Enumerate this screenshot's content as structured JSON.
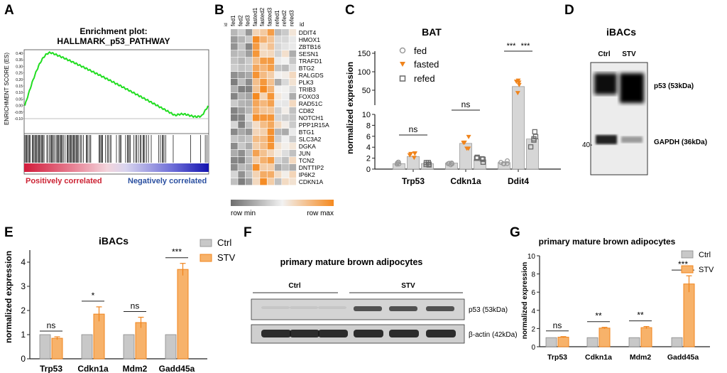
{
  "panels": {
    "A": {
      "letter": "A",
      "title_line1": "Enrichment plot:",
      "title_line2": "HALLMARK_p53_PATHWAY",
      "ylabel": "ENRICHMENT SCORE (ES)",
      "yticks": [
        "0.40",
        "0.35",
        "0.30",
        "0.25",
        "0.20",
        "0.15",
        "0.10",
        "0.05",
        "0.00",
        "-0.05",
        "-0.10"
      ],
      "pos_label": "Positively correlated",
      "neg_label": "Negatively correlated",
      "colors": {
        "curve": "#22dd22",
        "pos": "#cc2233",
        "neg": "#2a4fa0"
      }
    },
    "B": {
      "letter": "B",
      "id_label": "id",
      "columns": [
        "fed1",
        "fed2",
        "fed3",
        "fasted1",
        "fasted2",
        "fasted3",
        "refed1",
        "refed2",
        "refed3"
      ],
      "genes": [
        "DDIT4",
        "HMOX1",
        "ZBTB16",
        "SESN1",
        "TRAFD1",
        "BTG2",
        "RALGDS",
        "PLK3",
        "TRIB3",
        "FOXO3",
        "RAD51C",
        "CD82",
        "NOTCH1",
        "PPP1R15A",
        "BTG1",
        "SLC3A2",
        "DGKA",
        "JUN",
        "TCN2",
        "DNTTIP2",
        "IP6K2",
        "CDKN1A"
      ],
      "legend_min": "row min",
      "legend_max": "row max",
      "colors": {
        "min": "#6e6e6e",
        "mid": "#f2f2f2",
        "max": "#f5891f"
      }
    },
    "C": {
      "letter": "C",
      "chart_data": {
        "type": "bar",
        "title": "BAT",
        "ylabel": "normalized expression",
        "categories": [
          "Trp53",
          "Cdkn1a",
          "Ddit4"
        ],
        "series": [
          {
            "name": "fed",
            "values": [
              1.0,
              1.1,
              1.2
            ]
          },
          {
            "name": "fasted",
            "values": [
              2.3,
              4.7,
              60
            ]
          },
          {
            "name": "refed",
            "values": [
              1.0,
              1.7,
              5.5
            ]
          }
        ],
        "yticks_low": [
          "0",
          "2",
          "4",
          "6",
          "8",
          "10"
        ],
        "yticks_high": [
          "50",
          "100",
          "150"
        ],
        "significance": [
          "ns",
          "ns",
          "***",
          "***"
        ]
      }
    },
    "D": {
      "letter": "D",
      "title": "iBACs",
      "lanes": [
        "Ctrl",
        "STV"
      ],
      "label_p53": "p53 (53kDa)",
      "label_gapdh": "GAPDH (36kDa)",
      "marker": "40-"
    },
    "E": {
      "letter": "E",
      "chart_data": {
        "type": "bar",
        "title": "iBACs",
        "ylabel": "normalized expression",
        "categories": [
          "Trp53",
          "Cdkn1a",
          "Mdm2",
          "Gadd45a"
        ],
        "series": [
          {
            "name": "Ctrl",
            "values": [
              1,
              1,
              1,
              1
            ]
          },
          {
            "name": "STV",
            "values": [
              0.85,
              1.85,
              1.5,
              3.7
            ]
          }
        ],
        "errors": [
          0.06,
          0.3,
          0.22,
          0.25
        ],
        "yticks": [
          "0",
          "1",
          "2",
          "3",
          "4"
        ],
        "ylim": [
          0,
          4.5
        ],
        "significance": [
          "ns",
          "*",
          "ns",
          "***"
        ]
      }
    },
    "F": {
      "letter": "F",
      "title": "primary mature brown adipocytes",
      "group_ctrl": "Ctrl",
      "group_stv": "STV",
      "label_p53": "p53 (53kDa)",
      "label_actin": "β-actin (42kDa)"
    },
    "G": {
      "letter": "G",
      "chart_data": {
        "type": "bar",
        "title": "primary mature brown adipocytes",
        "ylabel": "normalized expression",
        "categories": [
          "Trp53",
          "Cdkn1a",
          "Mdm2",
          "Gadd45a"
        ],
        "series": [
          {
            "name": "Ctrl",
            "values": [
              1,
              1,
              1,
              1
            ]
          },
          {
            "name": "STV",
            "values": [
              1.05,
              2.05,
              2.1,
              6.9
            ]
          }
        ],
        "errors": [
          0.06,
          0.08,
          0.12,
          0.9
        ],
        "yticks": [
          "0",
          "2",
          "4",
          "6",
          "8",
          "10"
        ],
        "ylim": [
          0,
          10
        ],
        "significance": [
          "ns",
          "**",
          "**",
          "***"
        ]
      }
    },
    "colors": {
      "ctrl": "#c8c8c8",
      "ctrl_edge": "#8a8a8a",
      "stv": "#f7b26a",
      "stv_edge": "#f0841c",
      "fed_marker": "#9a9a9a",
      "refed_marker": "#6a6a6a"
    }
  }
}
